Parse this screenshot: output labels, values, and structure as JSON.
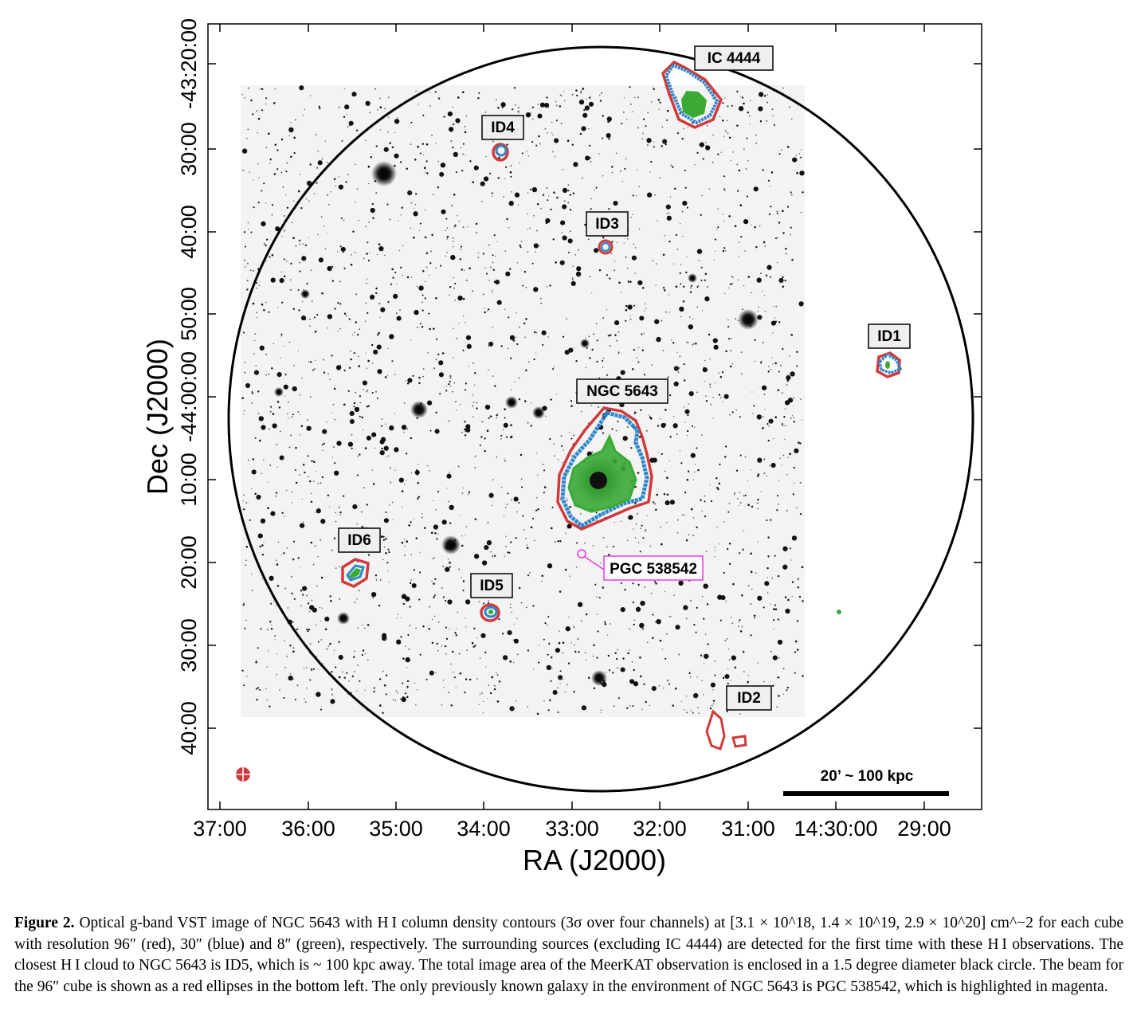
{
  "figure": {
    "axes": {
      "xlabel": "RA (J2000)",
      "ylabel": "Dec (J2000)",
      "x_ticks": [
        "37:00",
        "36:00",
        "35:00",
        "34:00",
        "33:00",
        "32:00",
        "31:00",
        "14:30:00",
        "29:00"
      ],
      "y_ticks": [
        "-43:20:00",
        "30:00",
        "40:00",
        "50:00",
        "-44:00:00",
        "10:00",
        "20:00",
        "30:00",
        "40:00"
      ]
    },
    "sources": [
      {
        "id": "ic4444",
        "label": "IC 4444"
      },
      {
        "id": "id4",
        "label": "ID4"
      },
      {
        "id": "id3",
        "label": "ID3"
      },
      {
        "id": "id1",
        "label": "ID1"
      },
      {
        "id": "ngc5643",
        "label": "NGC 5643"
      },
      {
        "id": "id6",
        "label": "ID6"
      },
      {
        "id": "id5",
        "label": "ID5"
      },
      {
        "id": "pgc538542",
        "label": "PGC 538542"
      },
      {
        "id": "id2",
        "label": "ID2"
      }
    ],
    "scalebar_label": "20’ ~ 100 kpc",
    "colors": {
      "res96": "#d13a3a",
      "res30": "#2f86c8",
      "res8": "#3aaa35",
      "known_galaxy": "#e23ee0",
      "field_circle": "#000000"
    }
  },
  "caption": {
    "label": "Figure 2.",
    "text": "Optical g-band VST image of NGC 5643 with H I column density contours (3σ over four channels) at [3.1 × 10^18, 1.4 × 10^19, 2.9 × 10^20] cm^−2 for each cube with resolution 96″ (red), 30″ (blue) and 8″ (green), respectively. The surrounding sources (excluding IC 4444) are detected for the first time with these H I observations. The closest H I cloud to NGC 5643 is ID5, which is ~ 100 kpc away. The total image area of the MeerKAT observation is enclosed in a 1.5 degree diameter black circle. The beam for the 96″ cube is shown as a red ellipses in the bottom left. The only previously known galaxy in the environment of NGC 5643 is PGC 538542, which is highlighted in magenta."
  }
}
